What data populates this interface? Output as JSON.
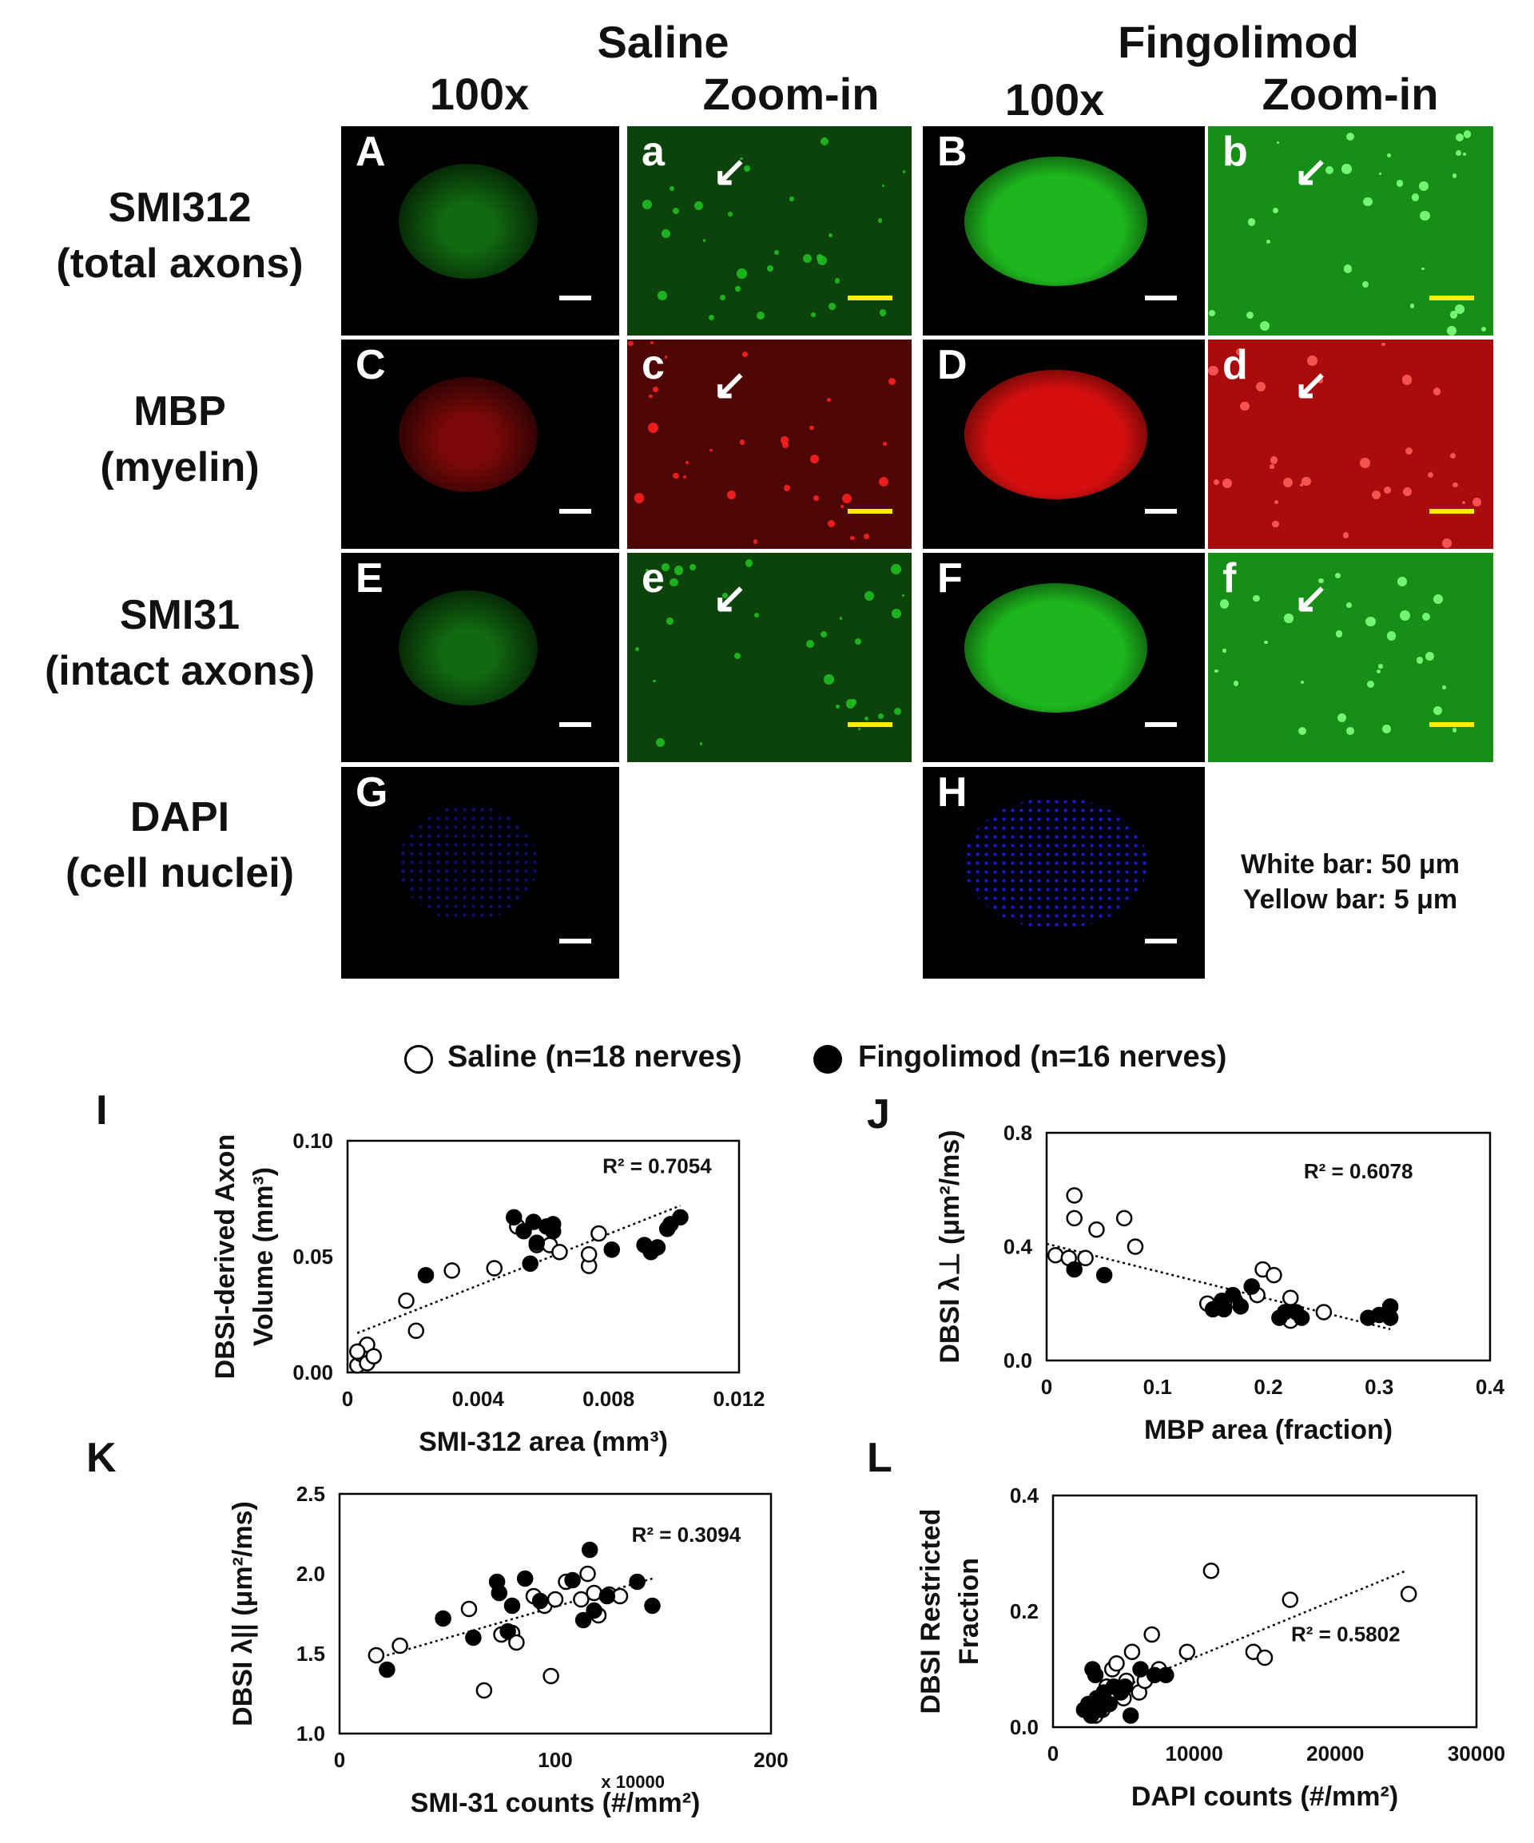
{
  "headers": {
    "saline": "Saline",
    "fingolimod": "Fingolimod",
    "col_100x": "100x",
    "col_zoom": "Zoom-in"
  },
  "rows": [
    {
      "line1": "SMI312",
      "line2": "(total axons)"
    },
    {
      "line1": "MBP",
      "line2": "(myelin)"
    },
    {
      "line1": "SMI31",
      "line2": "(intact axons)"
    },
    {
      "line1": "DAPI",
      "line2": "(cell nuclei)"
    }
  ],
  "panels": [
    {
      "label": "A",
      "row": 0,
      "col": 0,
      "stain": "green"
    },
    {
      "label": "a",
      "row": 0,
      "col": 1,
      "stain": "green"
    },
    {
      "label": "B",
      "row": 0,
      "col": 2,
      "stain": "green"
    },
    {
      "label": "b",
      "row": 0,
      "col": 3,
      "stain": "green"
    },
    {
      "label": "C",
      "row": 1,
      "col": 0,
      "stain": "red"
    },
    {
      "label": "c",
      "row": 1,
      "col": 1,
      "stain": "red"
    },
    {
      "label": "D",
      "row": 1,
      "col": 2,
      "stain": "red"
    },
    {
      "label": "d",
      "row": 1,
      "col": 3,
      "stain": "red"
    },
    {
      "label": "E",
      "row": 2,
      "col": 0,
      "stain": "green"
    },
    {
      "label": "e",
      "row": 2,
      "col": 1,
      "stain": "green"
    },
    {
      "label": "F",
      "row": 2,
      "col": 2,
      "stain": "green"
    },
    {
      "label": "f",
      "row": 2,
      "col": 3,
      "stain": "green"
    },
    {
      "label": "G",
      "row": 3,
      "col": 0,
      "stain": "blue"
    },
    {
      "label": "H",
      "row": 3,
      "col": 2,
      "stain": "blue"
    }
  ],
  "scale_note": {
    "white": "White bar: 50 μm",
    "yellow": "Yellow bar: 5 μm"
  },
  "colors": {
    "green": "#1fbf1f",
    "red": "#e01010",
    "blue": "#2020e0",
    "yellow_bar": "#ffee00"
  },
  "legend": {
    "saline": "Saline (n=18 nerves)",
    "fingolimod": "Fingolimod (n=16 nerves)"
  },
  "chart_data": [
    {
      "id": "I",
      "type": "scatter",
      "xlabel": "SMI-312 area (mm³)",
      "ylabel_line1": "DBSI-derived Axon",
      "ylabel_line2": "Volume (mm³)",
      "xlim": [
        0,
        0.012
      ],
      "ylim": [
        0,
        0.1
      ],
      "xticks": [
        "0",
        "0.004",
        "0.008",
        "0.012"
      ],
      "yticks": [
        "0.00",
        "0.05",
        "0.10"
      ],
      "xtick_values": [
        0,
        0.004,
        0.008,
        0.012
      ],
      "ytick_values": [
        0,
        0.05,
        0.1
      ],
      "r2": "R² = 0.7054",
      "trend": [
        [
          0.0003,
          0.017
        ],
        [
          0.0102,
          0.072
        ]
      ],
      "series": [
        {
          "name": "Saline",
          "filled": false,
          "points": [
            [
              0.0003,
              0.003
            ],
            [
              0.0004,
              0.008
            ],
            [
              0.0005,
              0.01
            ],
            [
              0.0006,
              0.012
            ],
            [
              0.0006,
              0.004
            ],
            [
              0.0008,
              0.007
            ],
            [
              0.0003,
              0.009
            ],
            [
              0.0018,
              0.031
            ],
            [
              0.0021,
              0.018
            ],
            [
              0.0032,
              0.044
            ],
            [
              0.0045,
              0.045
            ],
            [
              0.0058,
              0.055
            ],
            [
              0.0062,
              0.055
            ],
            [
              0.0065,
              0.052
            ],
            [
              0.0074,
              0.046
            ],
            [
              0.0074,
              0.051
            ],
            [
              0.0077,
              0.06
            ],
            [
              0.0052,
              0.063
            ]
          ]
        },
        {
          "name": "Fingolimod",
          "filled": true,
          "points": [
            [
              0.0024,
              0.042
            ],
            [
              0.0051,
              0.067
            ],
            [
              0.0054,
              0.061
            ],
            [
              0.0057,
              0.065
            ],
            [
              0.0058,
              0.056
            ],
            [
              0.0056,
              0.047
            ],
            [
              0.0061,
              0.063
            ],
            [
              0.0063,
              0.064
            ],
            [
              0.0081,
              0.053
            ],
            [
              0.0091,
              0.055
            ],
            [
              0.0093,
              0.052
            ],
            [
              0.0095,
              0.054
            ],
            [
              0.0098,
              0.062
            ],
            [
              0.0099,
              0.064
            ],
            [
              0.0102,
              0.067
            ],
            [
              0.0063,
              0.061
            ]
          ]
        }
      ]
    },
    {
      "id": "J",
      "type": "scatter",
      "xlabel": "MBP area (fraction)",
      "ylabel_line1": "DBSI λ⊥ (μm²/ms)",
      "ylabel_line2": "",
      "xlim": [
        0,
        0.4
      ],
      "ylim": [
        0,
        0.8
      ],
      "xticks": [
        "0",
        "0.1",
        "0.2",
        "0.3",
        "0.4"
      ],
      "yticks": [
        "0.0",
        "0.4",
        "0.8"
      ],
      "xtick_values": [
        0,
        0.1,
        0.2,
        0.3,
        0.4
      ],
      "ytick_values": [
        0,
        0.4,
        0.8
      ],
      "r2": "R² = 0.6078",
      "trend": [
        [
          0.0,
          0.41
        ],
        [
          0.31,
          0.11
        ]
      ],
      "series": [
        {
          "name": "Saline",
          "filled": false,
          "points": [
            [
              0.008,
              0.37
            ],
            [
              0.02,
              0.36
            ],
            [
              0.025,
              0.58
            ],
            [
              0.025,
              0.5
            ],
            [
              0.035,
              0.36
            ],
            [
              0.045,
              0.46
            ],
            [
              0.07,
              0.5
            ],
            [
              0.08,
              0.4
            ],
            [
              0.195,
              0.32
            ],
            [
              0.205,
              0.3
            ],
            [
              0.22,
              0.22
            ],
            [
              0.22,
              0.14
            ],
            [
              0.25,
              0.17
            ],
            [
              0.145,
              0.2
            ],
            [
              0.17,
              0.21
            ],
            [
              0.19,
              0.23
            ],
            [
              0.155,
              0.19
            ],
            [
              0.16,
              0.2
            ]
          ]
        },
        {
          "name": "Fingolimod",
          "filled": true,
          "points": [
            [
              0.025,
              0.32
            ],
            [
              0.052,
              0.3
            ],
            [
              0.15,
              0.18
            ],
            [
              0.158,
              0.21
            ],
            [
              0.16,
              0.18
            ],
            [
              0.168,
              0.23
            ],
            [
              0.175,
              0.19
            ],
            [
              0.185,
              0.26
            ],
            [
              0.21,
              0.15
            ],
            [
              0.215,
              0.17
            ],
            [
              0.225,
              0.17
            ],
            [
              0.23,
              0.15
            ],
            [
              0.29,
              0.15
            ],
            [
              0.3,
              0.16
            ],
            [
              0.31,
              0.19
            ],
            [
              0.31,
              0.15
            ]
          ]
        }
      ]
    },
    {
      "id": "K",
      "type": "scatter",
      "xlabel": "SMI-31 counts (#/mm²)",
      "xmultiplier": "x 10000",
      "ylabel_line1": "DBSI λ|| (μm²/ms)",
      "ylabel_line2": "",
      "xlim": [
        0,
        200
      ],
      "ylim": [
        1.0,
        2.5
      ],
      "xticks": [
        "0",
        "100",
        "200"
      ],
      "yticks": [
        "1.0",
        "1.5",
        "2.0",
        "2.5"
      ],
      "xtick_values": [
        0,
        100,
        200
      ],
      "ytick_values": [
        1.0,
        1.5,
        2.0,
        2.5
      ],
      "r2": "R² = 0.3094",
      "trend": [
        [
          17,
          1.47
        ],
        [
          145,
          1.97
        ]
      ],
      "series": [
        {
          "name": "Saline",
          "filled": false,
          "points": [
            [
              17,
              1.49
            ],
            [
              28,
              1.55
            ],
            [
              60,
              1.78
            ],
            [
              67,
              1.27
            ],
            [
              75,
              1.62
            ],
            [
              80,
              1.63
            ],
            [
              82,
              1.57
            ],
            [
              90,
              1.86
            ],
            [
              95,
              1.8
            ],
            [
              98,
              1.36
            ],
            [
              100,
              1.84
            ],
            [
              105,
              1.95
            ],
            [
              112,
              1.84
            ],
            [
              115,
              2.0
            ],
            [
              118,
              1.88
            ],
            [
              120,
              1.74
            ],
            [
              125,
              1.87
            ],
            [
              130,
              1.86
            ]
          ]
        },
        {
          "name": "Fingolimod",
          "filled": true,
          "points": [
            [
              22,
              1.4
            ],
            [
              48,
              1.72
            ],
            [
              62,
              1.6
            ],
            [
              73,
              1.95
            ],
            [
              74,
              1.88
            ],
            [
              78,
              1.64
            ],
            [
              80,
              1.8
            ],
            [
              86,
              1.97
            ],
            [
              93,
              1.83
            ],
            [
              108,
              1.96
            ],
            [
              113,
              1.71
            ],
            [
              116,
              2.15
            ],
            [
              118,
              1.77
            ],
            [
              124,
              1.86
            ],
            [
              138,
              1.95
            ],
            [
              145,
              1.8
            ]
          ]
        }
      ]
    },
    {
      "id": "L",
      "type": "scatter",
      "xlabel": "DAPI counts (#/mm²)",
      "ylabel_line1": "DBSI Restricted",
      "ylabel_line2": "Fraction",
      "xlim": [
        0,
        30000
      ],
      "ylim": [
        0,
        0.4
      ],
      "xticks": [
        "0",
        "10000",
        "20000",
        "30000"
      ],
      "yticks": [
        "0.0",
        "0.2",
        "0.4"
      ],
      "xtick_values": [
        0,
        10000,
        20000,
        30000
      ],
      "ytick_values": [
        0,
        0.2,
        0.4
      ],
      "r2": "R² = 0.5802",
      "trend": [
        [
          2000,
          0.04
        ],
        [
          25000,
          0.27
        ]
      ],
      "series": [
        {
          "name": "Saline",
          "filled": false,
          "points": [
            [
              3000,
              0.02
            ],
            [
              3500,
              0.03
            ],
            [
              4200,
              0.1
            ],
            [
              4500,
              0.11
            ],
            [
              5200,
              0.08
            ],
            [
              5600,
              0.13
            ],
            [
              6100,
              0.06
            ],
            [
              6500,
              0.08
            ],
            [
              7000,
              0.16
            ],
            [
              7500,
              0.1
            ],
            [
              9500,
              0.13
            ],
            [
              11200,
              0.27
            ],
            [
              14200,
              0.13
            ],
            [
              15000,
              0.12
            ],
            [
              16800,
              0.22
            ],
            [
              25200,
              0.23
            ],
            [
              5000,
              0.05
            ],
            [
              3800,
              0.07
            ]
          ]
        },
        {
          "name": "Fingolimod",
          "filled": true,
          "points": [
            [
              2200,
              0.03
            ],
            [
              2500,
              0.04
            ],
            [
              2700,
              0.02
            ],
            [
              2800,
              0.1
            ],
            [
              3000,
              0.09
            ],
            [
              3100,
              0.05
            ],
            [
              3300,
              0.03
            ],
            [
              3600,
              0.06
            ],
            [
              4000,
              0.04
            ],
            [
              4300,
              0.07
            ],
            [
              4800,
              0.06
            ],
            [
              5100,
              0.07
            ],
            [
              5500,
              0.02
            ],
            [
              6200,
              0.1
            ],
            [
              7200,
              0.09
            ],
            [
              8000,
              0.09
            ]
          ]
        }
      ]
    }
  ]
}
